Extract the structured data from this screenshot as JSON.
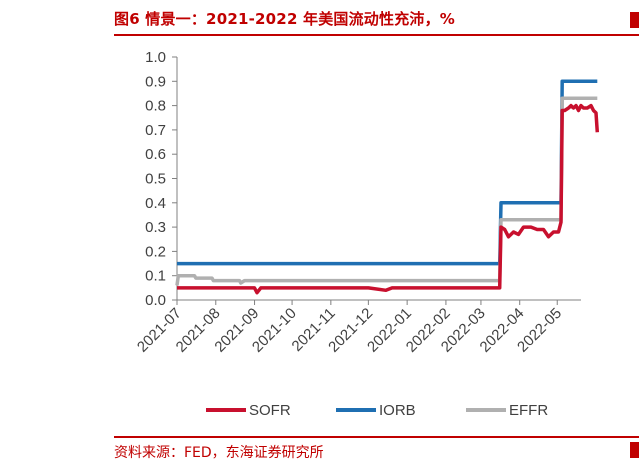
{
  "header": {
    "title": "图6 情景一：2021-2022 年美国流动性充沛，%"
  },
  "footer": {
    "source": "资料来源：FED，东海证券研究所"
  },
  "chart_data": {
    "type": "line",
    "title": "图6 情景一：2021-2022 年美国流动性充沛，%",
    "xlabel": "",
    "ylabel": "",
    "x_tick_labels": [
      "2021-07",
      "2021-08",
      "2021-09",
      "2021-10",
      "2021-11",
      "2021-12",
      "2022-01",
      "2022-02",
      "2022-03",
      "2022-04",
      "2022-05"
    ],
    "y_ticks": [
      "0.0",
      "0.1",
      "0.2",
      "0.3",
      "0.4",
      "0.5",
      "0.6",
      "0.7",
      "0.8",
      "0.9",
      "1.0"
    ],
    "ylim": [
      0,
      1.0
    ],
    "xlim": [
      "2021-07-01",
      "2022-05-20"
    ],
    "grid": false,
    "legend_position": "bottom",
    "series": [
      {
        "name": "SOFR",
        "color": "#c8102e",
        "points": [
          [
            "2021-07-01",
            0.05
          ],
          [
            "2021-09-01",
            0.05
          ],
          [
            "2021-09-03",
            0.03
          ],
          [
            "2021-09-06",
            0.05
          ],
          [
            "2021-10-01",
            0.05
          ],
          [
            "2021-12-01",
            0.05
          ],
          [
            "2021-12-15",
            0.04
          ],
          [
            "2021-12-20",
            0.05
          ],
          [
            "2022-01-01",
            0.05
          ],
          [
            "2022-03-16",
            0.05
          ],
          [
            "2022-03-17",
            0.3
          ],
          [
            "2022-03-20",
            0.29
          ],
          [
            "2022-03-23",
            0.26
          ],
          [
            "2022-03-27",
            0.28
          ],
          [
            "2022-03-31",
            0.27
          ],
          [
            "2022-04-04",
            0.3
          ],
          [
            "2022-04-10",
            0.3
          ],
          [
            "2022-04-15",
            0.29
          ],
          [
            "2022-04-20",
            0.29
          ],
          [
            "2022-04-24",
            0.26
          ],
          [
            "2022-04-28",
            0.28
          ],
          [
            "2022-05-02",
            0.28
          ],
          [
            "2022-05-04",
            0.32
          ],
          [
            "2022-05-05",
            0.78
          ],
          [
            "2022-05-07",
            0.78
          ],
          [
            "2022-05-10",
            0.79
          ],
          [
            "2022-05-12",
            0.8
          ],
          [
            "2022-05-14",
            0.79
          ],
          [
            "2022-05-16",
            0.8
          ],
          [
            "2022-05-18",
            0.78
          ],
          [
            "2022-05-20",
            0.8
          ],
          [
            "2022-05-22",
            0.79
          ],
          [
            "2022-05-25",
            0.79
          ],
          [
            "2022-05-28",
            0.8
          ],
          [
            "2022-05-30",
            0.78
          ],
          [
            "2022-06-01",
            0.77
          ],
          [
            "2022-06-02",
            0.69
          ]
        ]
      },
      {
        "name": "IORB",
        "color": "#1f6fb2",
        "points": [
          [
            "2021-07-01",
            0.15
          ],
          [
            "2022-03-16",
            0.15
          ],
          [
            "2022-03-17",
            0.4
          ],
          [
            "2022-05-04",
            0.4
          ],
          [
            "2022-05-05",
            0.9
          ],
          [
            "2022-06-02",
            0.9
          ]
        ]
      },
      {
        "name": "EFFR",
        "color": "#b0b0b0",
        "points": [
          [
            "2021-07-01",
            0.06
          ],
          [
            "2021-07-02",
            0.1
          ],
          [
            "2021-07-15",
            0.1
          ],
          [
            "2021-07-16",
            0.09
          ],
          [
            "2021-07-29",
            0.09
          ],
          [
            "2021-07-30",
            0.08
          ],
          [
            "2021-08-20",
            0.08
          ],
          [
            "2021-08-21",
            0.07
          ],
          [
            "2021-08-24",
            0.08
          ],
          [
            "2021-10-01",
            0.08
          ],
          [
            "2021-12-31",
            0.08
          ],
          [
            "2022-03-16",
            0.08
          ],
          [
            "2022-03-17",
            0.33
          ],
          [
            "2022-05-04",
            0.33
          ],
          [
            "2022-05-05",
            0.83
          ],
          [
            "2022-06-02",
            0.83
          ]
        ]
      }
    ]
  }
}
